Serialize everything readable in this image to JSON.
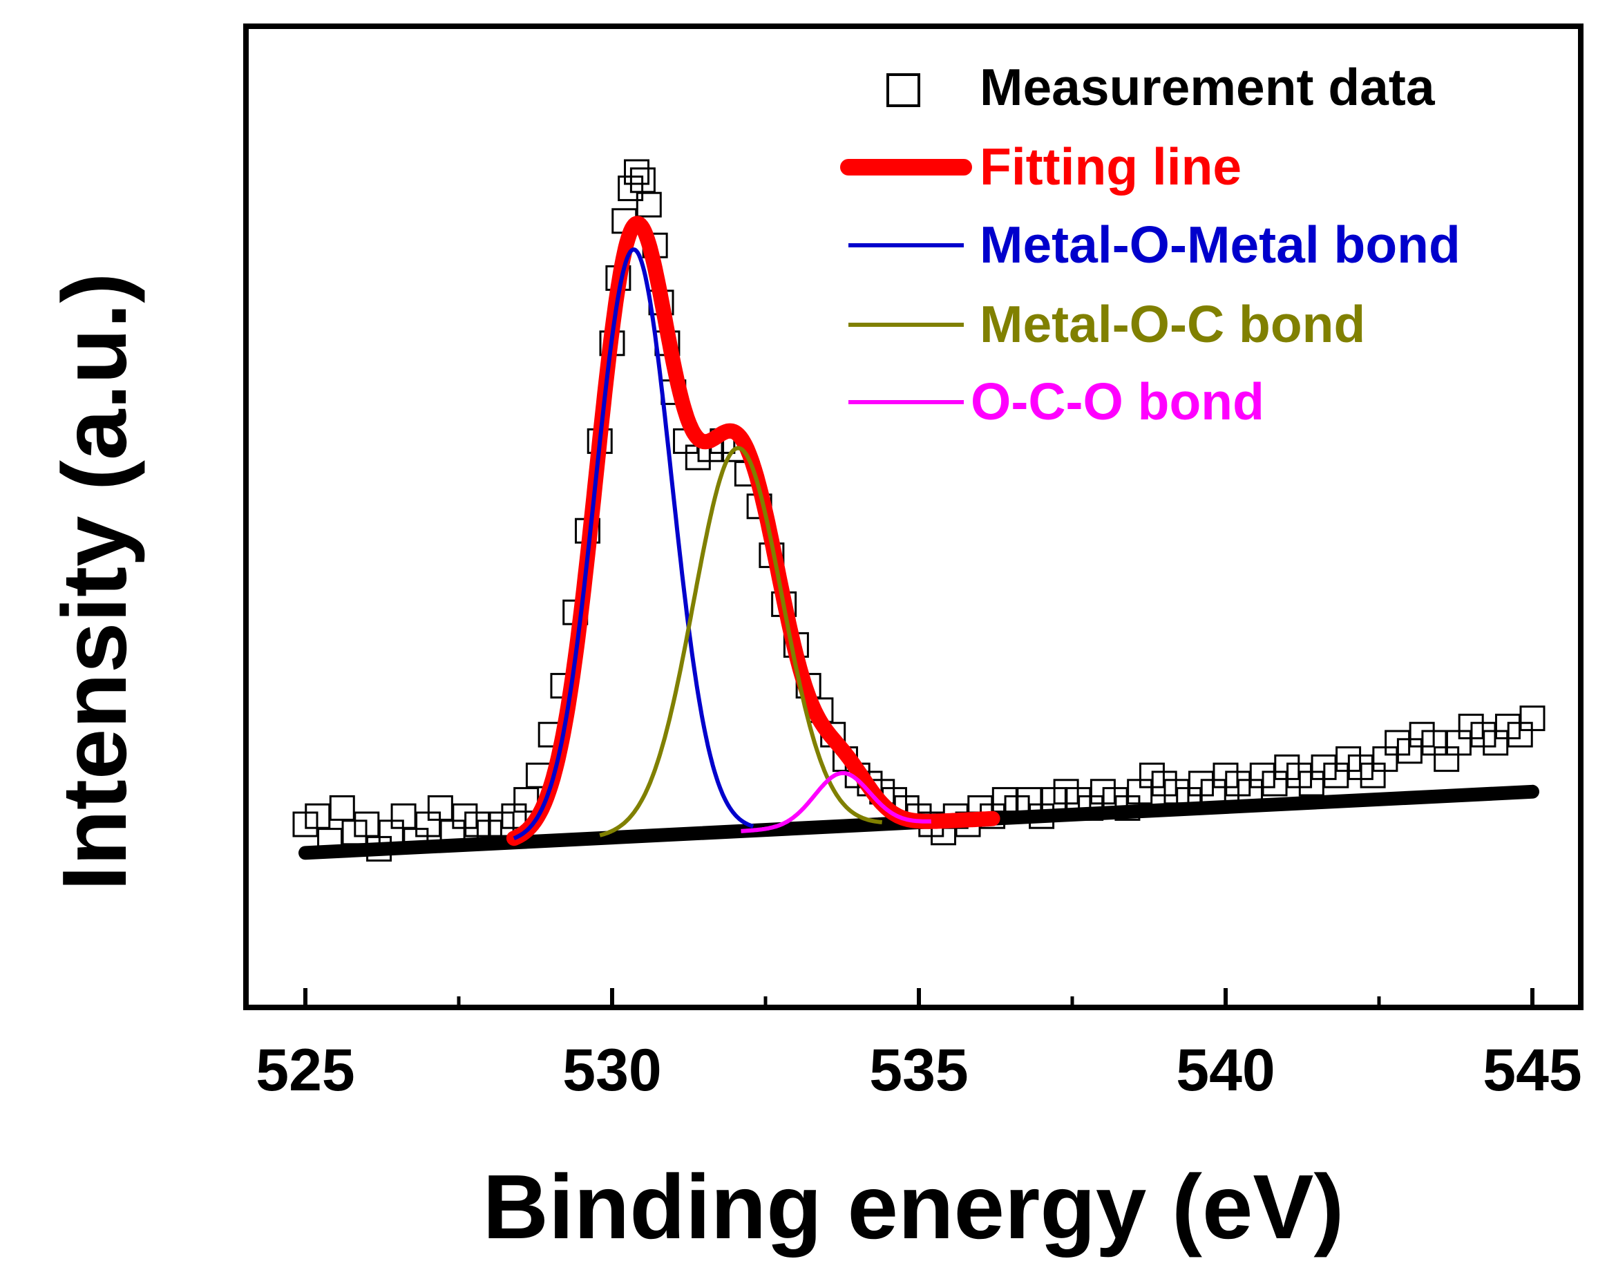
{
  "chart_data": {
    "type": "line",
    "xlabel": "Binding energy (eV)",
    "ylabel": "Intensity (a.u.)",
    "xlim": [
      525,
      545
    ],
    "ylim": [
      0,
      1.0
    ],
    "x_ticks": [
      525,
      530,
      535,
      540,
      545
    ],
    "x_minor_ticks": [
      527.5,
      532.5,
      537.5,
      542.5
    ],
    "grid": false,
    "legend_position": "top-right",
    "baseline": {
      "start": [
        525,
        0.115
      ],
      "end": [
        545,
        0.19
      ]
    },
    "measurement": {
      "name": "Measurement data",
      "color": "#000000",
      "points": [
        [
          525.0,
          0.15
        ],
        [
          525.2,
          0.16
        ],
        [
          525.4,
          0.13
        ],
        [
          525.6,
          0.17
        ],
        [
          525.8,
          0.14
        ],
        [
          526.0,
          0.15
        ],
        [
          526.2,
          0.12
        ],
        [
          526.4,
          0.14
        ],
        [
          526.6,
          0.16
        ],
        [
          526.8,
          0.13
        ],
        [
          527.0,
          0.15
        ],
        [
          527.2,
          0.17
        ],
        [
          527.4,
          0.14
        ],
        [
          527.6,
          0.16
        ],
        [
          527.8,
          0.15
        ],
        [
          528.0,
          0.14
        ],
        [
          528.2,
          0.15
        ],
        [
          528.4,
          0.16
        ],
        [
          528.6,
          0.18
        ],
        [
          528.8,
          0.21
        ],
        [
          529.0,
          0.26
        ],
        [
          529.2,
          0.32
        ],
        [
          529.4,
          0.41
        ],
        [
          529.6,
          0.51
        ],
        [
          529.8,
          0.62
        ],
        [
          530.0,
          0.74
        ],
        [
          530.1,
          0.82
        ],
        [
          530.2,
          0.89
        ],
        [
          530.3,
          0.93
        ],
        [
          530.4,
          0.95
        ],
        [
          530.5,
          0.94
        ],
        [
          530.6,
          0.91
        ],
        [
          530.7,
          0.86
        ],
        [
          530.8,
          0.79
        ],
        [
          530.9,
          0.74
        ],
        [
          531.0,
          0.68
        ],
        [
          531.2,
          0.62
        ],
        [
          531.4,
          0.6
        ],
        [
          531.6,
          0.61
        ],
        [
          531.8,
          0.62
        ],
        [
          532.0,
          0.61
        ],
        [
          532.2,
          0.58
        ],
        [
          532.4,
          0.54
        ],
        [
          532.6,
          0.48
        ],
        [
          532.8,
          0.42
        ],
        [
          533.0,
          0.37
        ],
        [
          533.2,
          0.32
        ],
        [
          533.4,
          0.29
        ],
        [
          533.6,
          0.26
        ],
        [
          533.8,
          0.23
        ],
        [
          534.0,
          0.21
        ],
        [
          534.2,
          0.2
        ],
        [
          534.4,
          0.19
        ],
        [
          534.6,
          0.18
        ],
        [
          534.8,
          0.17
        ],
        [
          535.0,
          0.16
        ],
        [
          535.2,
          0.15
        ],
        [
          535.4,
          0.14
        ],
        [
          535.6,
          0.16
        ],
        [
          535.8,
          0.15
        ],
        [
          536.0,
          0.17
        ],
        [
          536.2,
          0.16
        ],
        [
          536.4,
          0.18
        ],
        [
          536.6,
          0.17
        ],
        [
          536.8,
          0.18
        ],
        [
          537.0,
          0.16
        ],
        [
          537.2,
          0.18
        ],
        [
          537.4,
          0.19
        ],
        [
          537.6,
          0.18
        ],
        [
          537.8,
          0.17
        ],
        [
          538.0,
          0.19
        ],
        [
          538.2,
          0.18
        ],
        [
          538.4,
          0.17
        ],
        [
          538.6,
          0.19
        ],
        [
          538.8,
          0.21
        ],
        [
          539.0,
          0.2
        ],
        [
          539.2,
          0.19
        ],
        [
          539.4,
          0.18
        ],
        [
          539.6,
          0.2
        ],
        [
          539.8,
          0.19
        ],
        [
          540.0,
          0.21
        ],
        [
          540.2,
          0.2
        ],
        [
          540.4,
          0.19
        ],
        [
          540.6,
          0.21
        ],
        [
          540.8,
          0.2
        ],
        [
          541.0,
          0.22
        ],
        [
          541.2,
          0.21
        ],
        [
          541.4,
          0.2
        ],
        [
          541.6,
          0.22
        ],
        [
          541.8,
          0.21
        ],
        [
          542.0,
          0.23
        ],
        [
          542.2,
          0.22
        ],
        [
          542.4,
          0.21
        ],
        [
          542.6,
          0.23
        ],
        [
          542.8,
          0.25
        ],
        [
          543.0,
          0.24
        ],
        [
          543.2,
          0.26
        ],
        [
          543.4,
          0.25
        ],
        [
          543.6,
          0.23
        ],
        [
          543.8,
          0.25
        ],
        [
          544.0,
          0.27
        ],
        [
          544.2,
          0.26
        ],
        [
          544.4,
          0.25
        ],
        [
          544.6,
          0.27
        ],
        [
          544.8,
          0.26
        ],
        [
          545.0,
          0.28
        ]
      ]
    },
    "series": [
      {
        "name": "Fitting line",
        "color": "#ff0000",
        "style": "thick",
        "type": "sum"
      },
      {
        "name": "Metal-O-Metal bond",
        "color": "#0000cc",
        "center": 530.35,
        "sigma": 0.62,
        "amplitude": 0.72
      },
      {
        "name": "Metal-O-C bond",
        "color": "#808000",
        "center": 532.05,
        "sigma": 0.72,
        "amplitude": 0.47
      },
      {
        "name": "O-C-O bond",
        "color": "#ff00ff",
        "center": 533.75,
        "sigma": 0.45,
        "amplitude": 0.065
      }
    ]
  }
}
